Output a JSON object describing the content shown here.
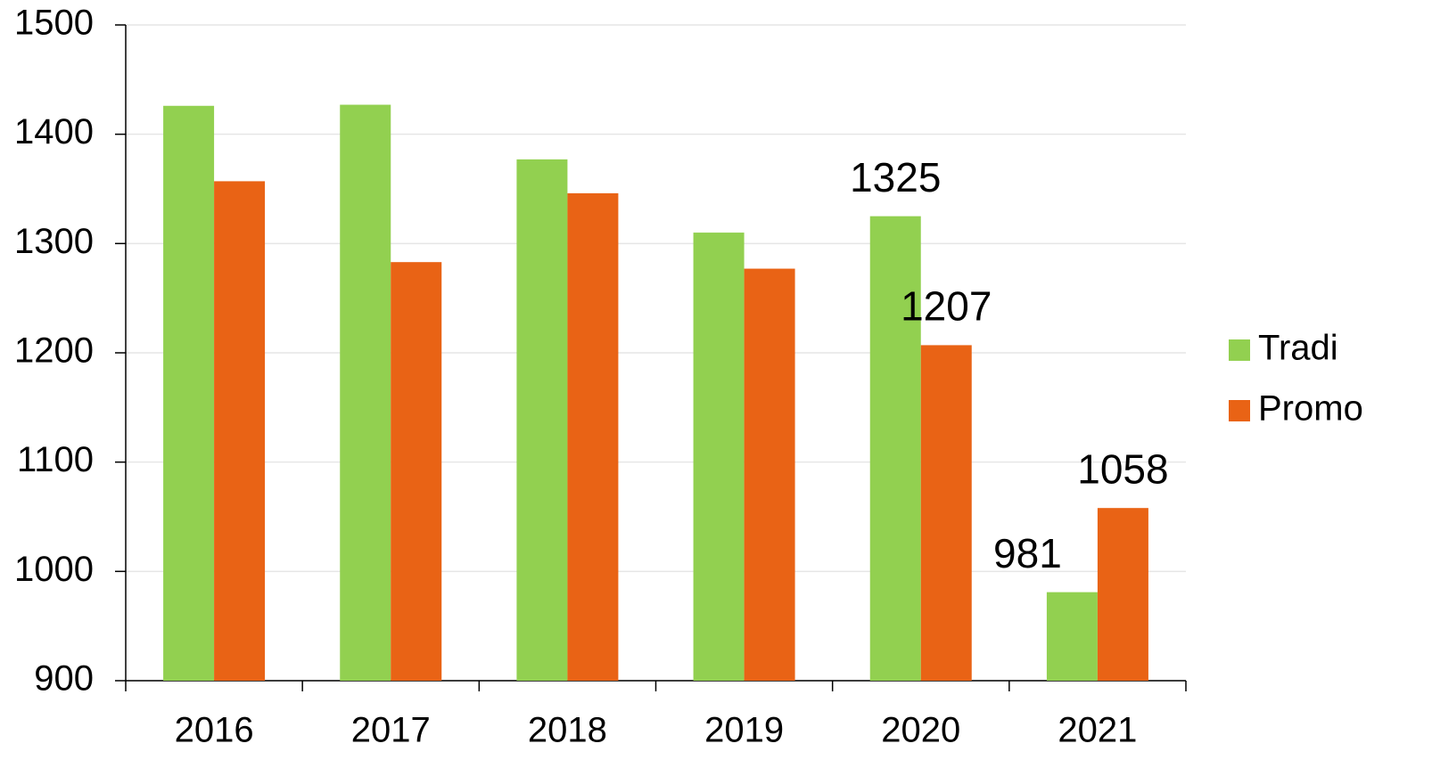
{
  "chart_data": {
    "type": "bar",
    "categories": [
      "2016",
      "2017",
      "2018",
      "2019",
      "2020",
      "2021"
    ],
    "series": [
      {
        "name": "Tradi",
        "color": "#92d050",
        "values": [
          1426,
          1427,
          1377,
          1310,
          1325,
          981
        ],
        "value_labels": [
          null,
          null,
          null,
          null,
          "1325",
          "981"
        ]
      },
      {
        "name": "Promo",
        "color": "#e96315",
        "values": [
          1357,
          1283,
          1346,
          1277,
          1207,
          1058
        ],
        "value_labels": [
          null,
          null,
          null,
          null,
          "1207",
          "1058"
        ]
      }
    ],
    "ylim": [
      900,
      1500
    ],
    "yticks": [
      900,
      1000,
      1100,
      1200,
      1300,
      1400,
      1500
    ],
    "grid": true,
    "legend": "right"
  }
}
